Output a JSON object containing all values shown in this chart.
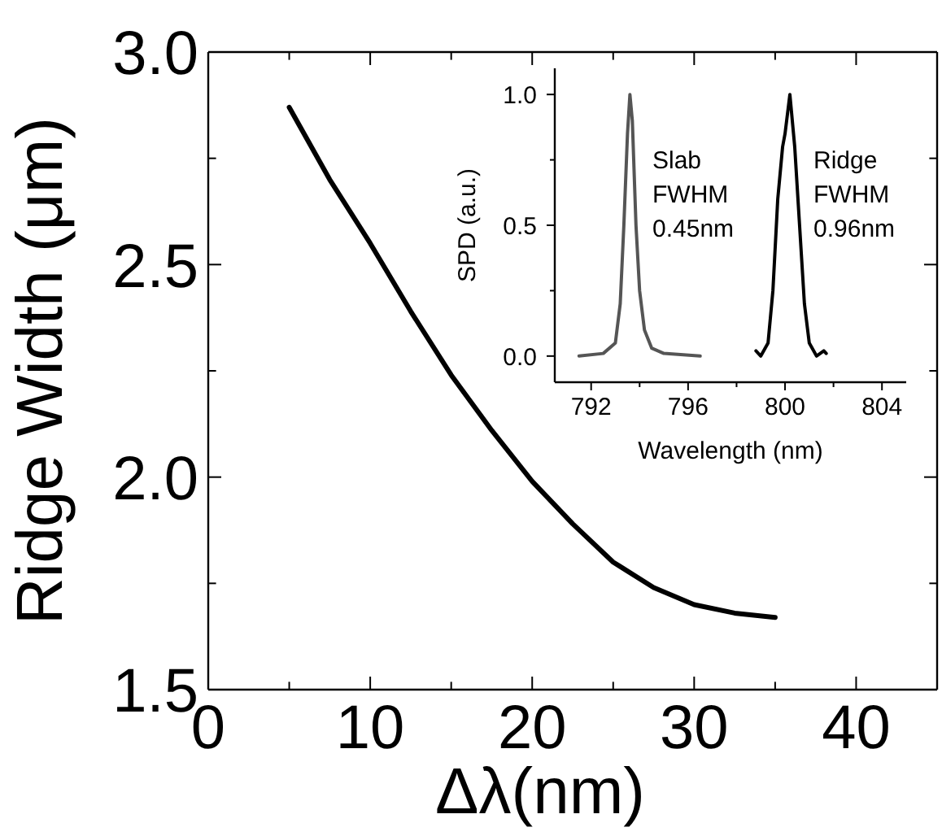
{
  "chart_data": [
    {
      "type": "line",
      "xlabel": "Δλ(nm)",
      "ylabel": "Ridge Width (μm)",
      "xlim": [
        0,
        45
      ],
      "ylim": [
        1.5,
        3.0
      ],
      "xticks": [
        0,
        {
          "value": 5,
          "label": null
        },
        10,
        {
          "value": 15,
          "label": null
        },
        20,
        {
          "value": 25,
          "label": null
        },
        30,
        {
          "value": 35,
          "label": null
        },
        40
      ],
      "yticks": [
        {
          "value": 1.5,
          "label": "1.5"
        },
        {
          "value": 1.75,
          "label": null
        },
        {
          "value": 2,
          "label": "2.0"
        },
        {
          "value": 2.25,
          "label": null
        },
        {
          "value": 2.5,
          "label": "2.5"
        },
        {
          "value": 2.75,
          "label": null
        },
        {
          "value": 3,
          "label": "3.0"
        }
      ],
      "series": [
        {
          "color": "#000000",
          "x": [
            5,
            7.5,
            10,
            12.5,
            15,
            17.5,
            20,
            22.5,
            25,
            27.5,
            30,
            32.5,
            35
          ],
          "values": [
            2.87,
            2.7,
            2.55,
            2.39,
            2.24,
            2.11,
            1.99,
            1.89,
            1.8,
            1.74,
            1.7,
            1.68,
            1.67
          ]
        }
      ],
      "grid": false
    },
    {
      "type": "line",
      "xlabel": "Wavelength (nm)",
      "ylabel": "SPD (a.u.)",
      "xlim": [
        790.5,
        805
      ],
      "ylim": [
        -0.1,
        1.1
      ],
      "xticks": [
        792,
        {
          "value": 794,
          "label": null
        },
        796,
        {
          "value": 798,
          "label": null
        },
        800,
        {
          "value": 802,
          "label": null
        },
        804
      ],
      "yticks": [
        {
          "value": 0,
          "label": "0.0"
        },
        {
          "value": 0.25,
          "label": null
        },
        {
          "value": 0.5,
          "label": "0.5"
        },
        {
          "value": 0.75,
          "label": null
        },
        {
          "value": 1,
          "label": "1.0"
        }
      ],
      "annotations": [
        "Slab\nFWHM\n0.45nm",
        "Ridge\nFWHM\n0.96nm"
      ],
      "series": [
        {
          "color": "#555555",
          "x": [
            791.5,
            792.5,
            793,
            793.2,
            793.35,
            793.5,
            793.6,
            793.7,
            793.85,
            794,
            794.2,
            794.5,
            795,
            796.5
          ],
          "values": [
            0,
            0.01,
            0.05,
            0.2,
            0.5,
            0.85,
            1,
            0.9,
            0.5,
            0.25,
            0.1,
            0.03,
            0.01,
            0
          ]
        },
        {
          "color": "#000000",
          "x": [
            798.8,
            799,
            799.3,
            799.5,
            799.7,
            799.9,
            800,
            800.2,
            800.4,
            800.6,
            800.8,
            801,
            801.3,
            801.6,
            801.7
          ],
          "values": [
            0.02,
            0,
            0.05,
            0.25,
            0.6,
            0.8,
            0.85,
            1,
            0.8,
            0.5,
            0.2,
            0.05,
            0,
            0.02,
            0.01
          ]
        }
      ],
      "grid": false
    }
  ]
}
